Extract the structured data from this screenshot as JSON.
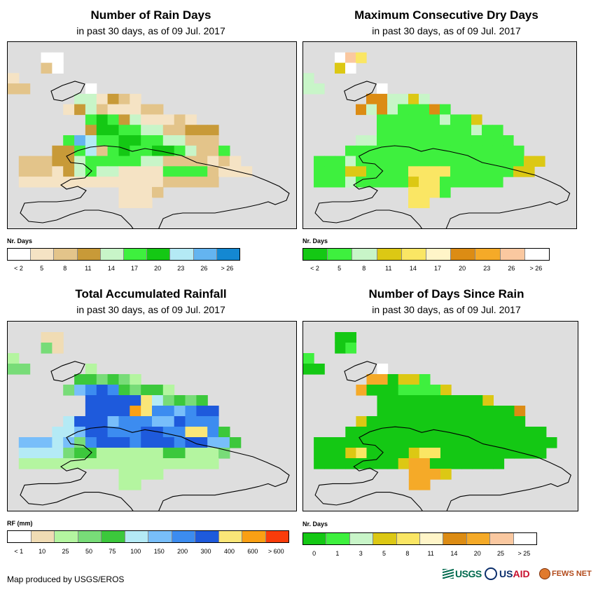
{
  "panels": [
    {
      "title": "Number of Rain Days",
      "subtitle": "in past 30 days, as of 09 Jul. 2017",
      "legend_title": "Nr. Days",
      "legend_labels": [
        "< 2",
        "5",
        "8",
        "11",
        "14",
        "17",
        "20",
        "23",
        "26",
        "> 26"
      ],
      "legend_colors": [
        "#ffffff",
        "#f5e3c4",
        "#e3c48a",
        "#c89a38",
        "#c8f5c8",
        "#3ef03e",
        "#14c814",
        "#b4eaf5",
        "#64b4f0",
        "#1488d2"
      ],
      "palette": {
        "a": "#f5e3c4",
        "b": "#e3c48a",
        "c": "#c89a38",
        "d": "#c8f5c8",
        "e": "#3ef03e",
        "f": "#14c814",
        "g": "#b4eaf5",
        "h": "#64b4f0",
        "w": "#ffffff"
      }
    },
    {
      "title": "Maximum Consecutive Dry Days",
      "subtitle": "in past 30 days, as of 09 Jul. 2017",
      "legend_title": "Nr. Days",
      "legend_labels": [
        "< 2",
        "5",
        "8",
        "11",
        "14",
        "17",
        "20",
        "23",
        "26",
        "> 26"
      ],
      "legend_colors": [
        "#14c814",
        "#3ef03e",
        "#c8f5c8",
        "#dcc814",
        "#fae664",
        "#fff5c8",
        "#dc8c14",
        "#f5aa28",
        "#fac8a0",
        "#ffffff"
      ],
      "palette": {
        "a": "#14c814",
        "b": "#3ef03e",
        "c": "#c8f5c8",
        "d": "#dcc814",
        "e": "#fae664",
        "f": "#fff5c8",
        "g": "#dc8c14",
        "h": "#f5aa28",
        "i": "#fac8a0",
        "w": "#ffffff"
      }
    },
    {
      "title": "Total Accumulated Rainfall",
      "subtitle": "in past 30 days, as of 09 Jul. 2017",
      "legend_title": "RF (mm)",
      "legend_labels": [
        "< 1",
        "10",
        "25",
        "50",
        "75",
        "100",
        "150",
        "200",
        "300",
        "400",
        "600",
        "> 600"
      ],
      "legend_colors": [
        "#ffffff",
        "#f0dcb4",
        "#b4f5a0",
        "#78dc78",
        "#3cc83c",
        "#b4eaf5",
        "#78befa",
        "#3c8cf0",
        "#1e5adc",
        "#fae678",
        "#faa014",
        "#fa3c0a"
      ],
      "palette": {
        "a": "#f0dcb4",
        "b": "#b4f5a0",
        "c": "#78dc78",
        "d": "#3cc83c",
        "e": "#b4eaf5",
        "f": "#78befa",
        "g": "#3c8cf0",
        "h": "#1e5adc",
        "i": "#fae678",
        "j": "#faa014",
        "w": "#ffffff"
      }
    },
    {
      "title": "Number of Days Since Rain",
      "subtitle": "in past 30 days, as of 09 Jul. 2017",
      "legend_title": "Nr. Days",
      "legend_labels": [
        "0",
        "1",
        "3",
        "5",
        "8",
        "11",
        "14",
        "20",
        "25",
        "> 25"
      ],
      "legend_colors": [
        "#14c814",
        "#3ef03e",
        "#c8f5c8",
        "#dcc814",
        "#fae664",
        "#fff5c8",
        "#dc8c14",
        "#f5aa28",
        "#fac8a0",
        "#ffffff"
      ],
      "palette": {
        "a": "#14c814",
        "b": "#3ef03e",
        "c": "#c8f5c8",
        "d": "#dcc814",
        "e": "#fae664",
        "f": "#fff5c8",
        "g": "#dc8c14",
        "h": "#f5aa28",
        "i": "#fac8a0",
        "w": "#ffffff"
      }
    }
  ],
  "grids": [
    [
      "..........................",
      "...ww.....................",
      "...bw.....................",
      "a.........................",
      "bb.....w..................",
      "......ddacba..............",
      ".....acdbaaabb............",
      ".......efecdaaaba.........",
      ".......cffeeddbbccc.......",
      ".....ehgeeffeeddbbb.......",
      "....ccegbefeeffedbbe......",
      ".bbbccdeeeeeddbbbbaba.....",
      ".bbbacdeddaaaaeeeebaaa....",
      ".aaaaaaaaaaaaabbbbb.......",
      "..........aaab............",
      "..........aaa.............",
      "..........................",
      ".........................."
    ],
    [
      "..........................",
      "...wie....................",
      "...dw.....................",
      "c.........................",
      "cc.....w..................",
      "......ggccdc..............",
      ".....gcgcbbbgb............",
      ".......bbbbbbcbbd.........",
      ".......bbbbbbbbbcbb.......",
      ".....ccbbbbbbbbbbbbb......",
      "....bbbbbbbbbbbbbbbbb.....",
      ".bbbcbbbbbbbbbbbbbbbbdd...",
      ".bbbddbbbbeeeebbbbbbdd....",
      ".bbbcbbbbbdeebbbbbb.......",
      "..........eeeb............",
      "..........ee..............",
      "..........................",
      ".........................."
    ],
    [
      "..........................",
      "...aa.....................",
      "...ca.....................",
      "b.........................",
      "cc.....b..................",
      "......ddcdcb..............",
      ".....cfghgdcddb...........",
      ".......hhhhhiecdcd........",
      ".......hhhhjiggfghh.......",
      ".....ehhhfgggffhggg.......",
      "....eefhhggghhggiigd......",
      ".fffefcghhhghhhghhffd.....",
      ".eeeecddbbbbbbddbbbc......",
      ".bbbbbbbbbbbbbbbbbb.......",
      "..........bbbb............",
      "..........bb..............",
      "..........................",
      ".........................."
    ],
    [
      "..........................",
      "...aa.....................",
      "...ab.....................",
      "b.........................",
      "aa.....w..................",
      "......hhaddb..............",
      ".....haaabbbbd............",
      ".......aaaaaaaaaad........",
      ".......aaaaaaaaaaaaag.....",
      ".....daaaaaaaaaaaaaaa.....",
      "....aaaaaaaaaaaaaaaaaaa...",
      ".aaaaaaaaaaaaaaaaaaaaaaa..",
      ".aaadeaaaadeeaaaaaaaaaa...",
      ".aaaaaaaadhhaaaaaaa.......",
      "..........hhhd............",
      "..........hh..............",
      "..........................",
      ".........................."
    ]
  ],
  "credit": "Map produced by USGS/EROS",
  "logos": {
    "usgs": "USGS",
    "usaid_a": "US",
    "usaid_b": "AID",
    "fews": "FEWS NET"
  }
}
